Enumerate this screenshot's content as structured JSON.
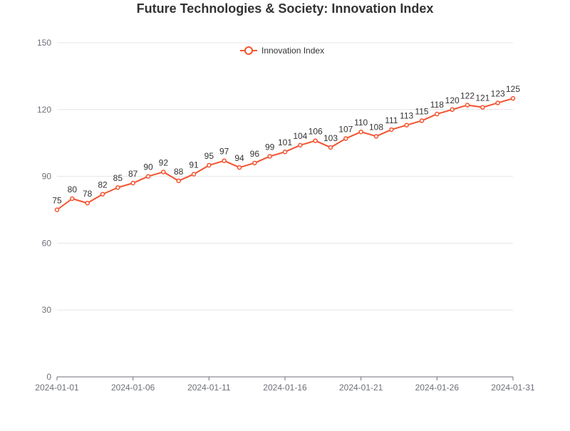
{
  "chart_data": {
    "type": "line",
    "title": "Future Technologies & Society: Innovation Index",
    "xlabel": "",
    "ylabel": "",
    "x": [
      "2024-01-01",
      "2024-01-02",
      "2024-01-03",
      "2024-01-04",
      "2024-01-05",
      "2024-01-06",
      "2024-01-07",
      "2024-01-08",
      "2024-01-09",
      "2024-01-10",
      "2024-01-11",
      "2024-01-12",
      "2024-01-13",
      "2024-01-14",
      "2024-01-15",
      "2024-01-16",
      "2024-01-17",
      "2024-01-18",
      "2024-01-19",
      "2024-01-20",
      "2024-01-21",
      "2024-01-22",
      "2024-01-23",
      "2024-01-24",
      "2024-01-25",
      "2024-01-26",
      "2024-01-27",
      "2024-01-28",
      "2024-01-29",
      "2024-01-30",
      "2024-01-31"
    ],
    "x_tick_labels": [
      "2024-01-01",
      "2024-01-06",
      "2024-01-11",
      "2024-01-16",
      "2024-01-21",
      "2024-01-26",
      "2024-01-31"
    ],
    "y_ticks": [
      0,
      30,
      60,
      90,
      120,
      150
    ],
    "ylim": [
      0,
      150
    ],
    "grid": "horizontal",
    "legend_position": "top-center",
    "series": [
      {
        "name": "Innovation Index",
        "color": "#f4532f",
        "values": [
          75,
          80,
          78,
          82,
          85,
          87,
          90,
          92,
          88,
          91,
          95,
          97,
          94,
          96,
          99,
          101,
          104,
          106,
          103,
          107,
          110,
          108,
          111,
          113,
          115,
          118,
          120,
          122,
          121,
          123,
          125
        ]
      }
    ]
  }
}
